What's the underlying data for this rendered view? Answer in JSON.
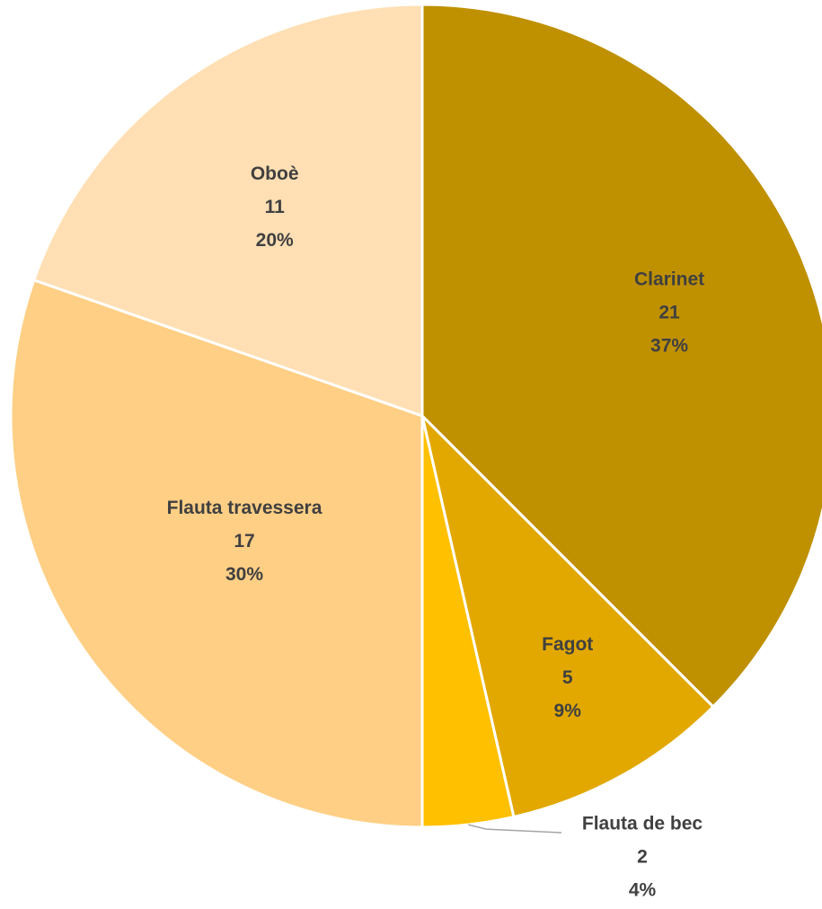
{
  "chart_data": {
    "type": "pie",
    "categories": [
      "Clarinet",
      "Fagot",
      "Flauta de bec",
      "Flauta travessera",
      "Oboè"
    ],
    "values": [
      21,
      5,
      2,
      17,
      11
    ],
    "percent_labels": [
      "37%",
      "9%",
      "4%",
      "30%",
      "20%"
    ],
    "colors": [
      "#bf9000",
      "#e2a800",
      "#ffc000",
      "#ffcf85",
      "#ffdfb3"
    ]
  }
}
